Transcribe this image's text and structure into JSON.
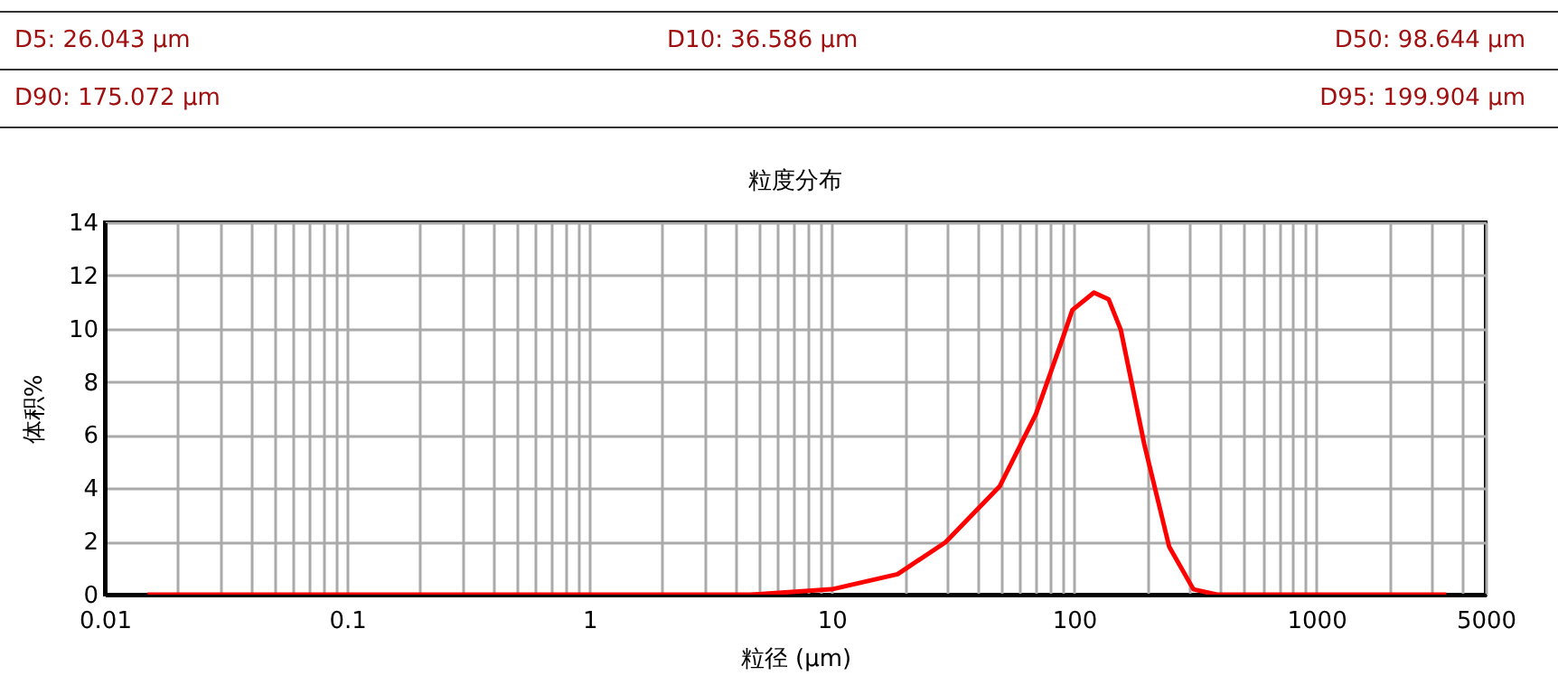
{
  "chart_data": {
    "type": "line",
    "title": "粒度分布",
    "xlabel": "粒径 (μm)",
    "ylabel": "体积%",
    "annotations": [
      "D5:  26.043 μm",
      "D10:  36.586 μm",
      "D50:  98.644 μm",
      "D90:  175.072 μm",
      "D95:  199.904 μm"
    ],
    "series": [
      {
        "color": "#ff0000",
        "x": [
          0.015,
          0.1,
          1,
          4.6,
          5,
          10,
          18.7,
          29.5,
          49.4,
          69.7,
          88.7,
          98.4,
          120.8,
          139,
          156,
          195,
          247,
          311,
          389,
          1000,
          3440
        ],
        "values": [
          0,
          0,
          0,
          0,
          0.02,
          0.2,
          0.77,
          1.97,
          4.08,
          6.8,
          9.5,
          10.7,
          11.36,
          11.1,
          9.95,
          5.65,
          1.8,
          0.2,
          0,
          0,
          0
        ]
      }
    ],
    "log": "x",
    "xlim": [
      0.01,
      5000
    ],
    "xticks": [
      0.01,
      {
        "value": 0.02,
        "label": null
      },
      {
        "value": 0.03,
        "label": null
      },
      {
        "value": 0.04,
        "label": null
      },
      {
        "value": 0.05,
        "label": null
      },
      {
        "value": 0.06,
        "label": null
      },
      {
        "value": 0.07,
        "label": null
      },
      {
        "value": 0.08,
        "label": null
      },
      {
        "value": 0.09,
        "label": null
      },
      0.1,
      {
        "value": 0.2,
        "label": null
      },
      {
        "value": 0.3,
        "label": null
      },
      {
        "value": 0.4,
        "label": null
      },
      {
        "value": 0.5,
        "label": null
      },
      {
        "value": 0.6,
        "label": null
      },
      {
        "value": 0.7,
        "label": null
      },
      {
        "value": 0.8,
        "label": null
      },
      {
        "value": 0.9,
        "label": null
      },
      1,
      {
        "value": 2,
        "label": null
      },
      {
        "value": 3,
        "label": null
      },
      {
        "value": 4,
        "label": null
      },
      {
        "value": 5,
        "label": null
      },
      {
        "value": 6,
        "label": null
      },
      {
        "value": 7,
        "label": null
      },
      {
        "value": 8,
        "label": null
      },
      {
        "value": 9,
        "label": null
      },
      10,
      {
        "value": 20,
        "label": null
      },
      {
        "value": 30,
        "label": null
      },
      {
        "value": 40,
        "label": null
      },
      {
        "value": 50,
        "label": null
      },
      {
        "value": 60,
        "label": null
      },
      {
        "value": 70,
        "label": null
      },
      {
        "value": 80,
        "label": null
      },
      {
        "value": 90,
        "label": null
      },
      100,
      {
        "value": 200,
        "label": null
      },
      {
        "value": 300,
        "label": null
      },
      {
        "value": 400,
        "label": null
      },
      {
        "value": 500,
        "label": null
      },
      {
        "value": 600,
        "label": null
      },
      {
        "value": 700,
        "label": null
      },
      {
        "value": 800,
        "label": null
      },
      {
        "value": 900,
        "label": null
      },
      1000,
      {
        "value": 2000,
        "label": null
      },
      {
        "value": 3000,
        "label": null
      },
      {
        "value": 4000,
        "label": null
      },
      5000
    ],
    "ylim": [
      0,
      14
    ],
    "yticks": [
      0,
      2,
      4,
      6,
      8,
      10,
      12,
      14
    ],
    "grid": true,
    "legend": false,
    "marker": "none",
    "line_style": "solid"
  }
}
